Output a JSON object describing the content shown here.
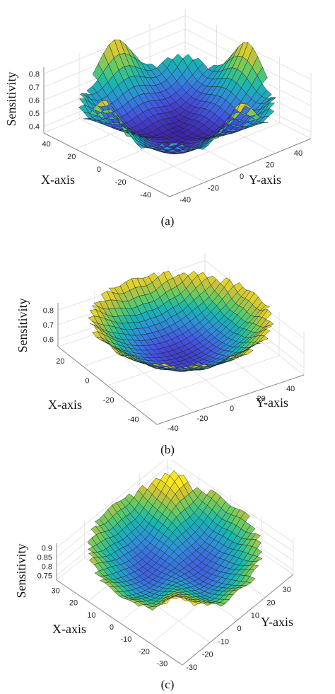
{
  "chart_data": [
    {
      "panel_label": "(a)",
      "type": "surface3d",
      "zlabel": "Sensitivity",
      "xlabel": "X-axis",
      "ylabel": "Y-axis",
      "zticks": [
        "0.4",
        "0.5",
        "0.6",
        "0.7",
        "0.8"
      ],
      "xticks": [
        "40",
        "20",
        "0",
        "-20",
        "-40"
      ],
      "yticks": [
        "-40",
        "-20",
        "0",
        "20",
        "40"
      ],
      "xlim": [
        -40,
        40
      ],
      "ylim": [
        -40,
        40
      ],
      "zlim": [
        0.4,
        0.8
      ],
      "surface": {
        "center_z": 0.4,
        "rim_z": 0.75,
        "ripple_amplitude": 0.08,
        "ripple_count": 4
      },
      "colormap": [
        "#3e26a8",
        "#4455e0",
        "#2f8fd8",
        "#17b7b0",
        "#63cb64",
        "#c9c23a",
        "#f9e621"
      ],
      "grid": true
    },
    {
      "panel_label": "(b)",
      "type": "surface3d",
      "zlabel": "Sensitivity",
      "xlabel": "X-axis",
      "ylabel": "Y-axis",
      "zticks": [
        "0.6",
        "0.7",
        "0.8"
      ],
      "xticks": [
        "20",
        "0",
        "-20",
        "-40"
      ],
      "yticks": [
        "-40",
        "-20",
        "0",
        "20",
        "40"
      ],
      "xlim": [
        -40,
        40
      ],
      "ylim": [
        -40,
        40
      ],
      "zlim": [
        0.55,
        0.9
      ],
      "surface": {
        "center_z": 0.58,
        "rim_z": 0.88,
        "ripple_amplitude": 0.015,
        "ripple_count": 16
      },
      "colormap": [
        "#3e26a8",
        "#4455e0",
        "#2f8fd8",
        "#17b7b0",
        "#63cb64",
        "#c9c23a",
        "#f9e621"
      ],
      "grid": true
    },
    {
      "panel_label": "(c)",
      "type": "surface3d",
      "zlabel": "Sensitivity",
      "xlabel": "X-axis",
      "ylabel": "Y-axis",
      "zticks": [
        "0.75",
        "0.8",
        "0.85",
        "0.9"
      ],
      "xticks": [
        "30",
        "20",
        "10",
        "0",
        "-10",
        "-20",
        "-30"
      ],
      "yticks": [
        "-30",
        "-20",
        "-10",
        "0",
        "10",
        "20",
        "30"
      ],
      "xlim": [
        -30,
        30
      ],
      "ylim": [
        -30,
        30
      ],
      "zlim": [
        0.72,
        0.93
      ],
      "surface": {
        "center_z": 0.74,
        "rim_z": 0.9,
        "ripple_amplitude": 0.01,
        "ripple_count": 14,
        "ridge_height": 0.08
      },
      "colormap": [
        "#3e26a8",
        "#4455e0",
        "#2f8fd8",
        "#17b7b0",
        "#63cb64",
        "#c9c23a",
        "#f9e621"
      ],
      "grid": true
    }
  ]
}
